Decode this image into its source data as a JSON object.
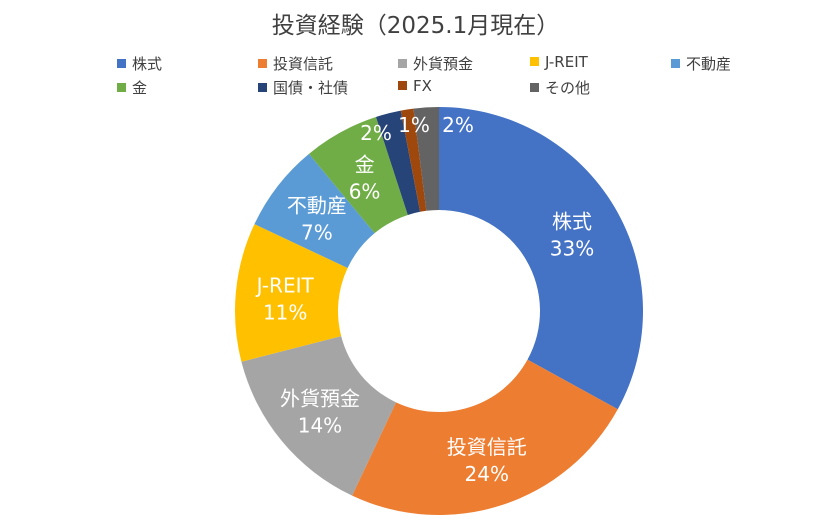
{
  "chart_data": {
    "type": "pie",
    "title": "投資経験（2025.1月現在）",
    "categories": [
      "株式",
      "投資信託",
      "外貨預金",
      "J-REIT",
      "不動産",
      "金",
      "国債・社債",
      "FX",
      "その他"
    ],
    "values": [
      33,
      24,
      14,
      11,
      7,
      6,
      2,
      1,
      2
    ],
    "data_labels": [
      "33%",
      "24%",
      "14%",
      "11%",
      "7%",
      "6%",
      "2%",
      "1%",
      "2%"
    ],
    "slice_label_shows_category": [
      true,
      true,
      true,
      true,
      true,
      true,
      false,
      false,
      false
    ],
    "colors": [
      "#4472C4",
      "#ED7D31",
      "#A5A5A5",
      "#FFC000",
      "#5B9BD5",
      "#70AD47",
      "#264478",
      "#9E480E",
      "#636363"
    ],
    "legend_position": "top",
    "hole": "donut"
  }
}
